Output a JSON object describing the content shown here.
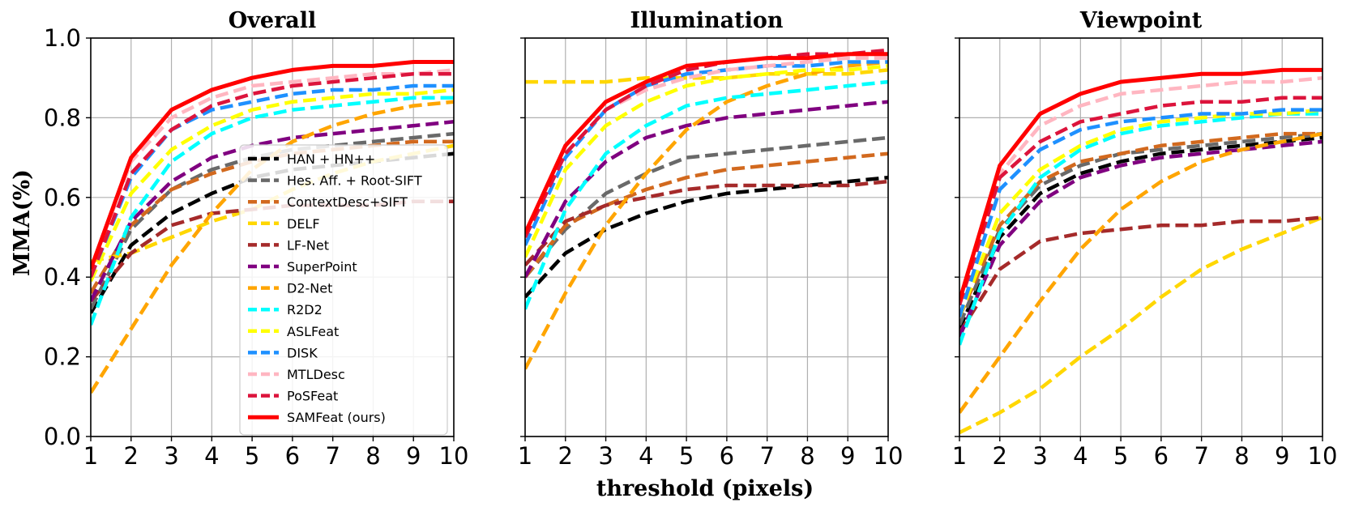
{
  "chart_data": {
    "type": "line",
    "ylabel": "MMA(%)",
    "xlabel": "threshold (pixels)",
    "x": [
      1,
      2,
      3,
      4,
      5,
      6,
      7,
      8,
      9,
      10
    ],
    "xlim": [
      1,
      10
    ],
    "ylim": [
      0.0,
      1.0
    ],
    "xticks": [
      "1",
      "2",
      "3",
      "4",
      "5",
      "6",
      "7",
      "8",
      "9",
      "10"
    ],
    "yticks": [
      "0.0",
      "0.2",
      "0.4",
      "0.6",
      "0.8",
      "1.0"
    ],
    "grid": true,
    "legend_panel": 0,
    "legend_location": "lower-right",
    "methods": [
      {
        "name": "HAN + HN++",
        "color": "#000000",
        "style": "dashed"
      },
      {
        "name": "Hes. Aff. + Root-SIFT",
        "color": "#696969",
        "style": "dashed"
      },
      {
        "name": "ContextDesc+SIFT",
        "color": "#d2691e",
        "style": "dashed"
      },
      {
        "name": "DELF",
        "color": "#ffd700",
        "style": "dashed"
      },
      {
        "name": "LF-Net",
        "color": "#a52a2a",
        "style": "dashed"
      },
      {
        "name": "SuperPoint",
        "color": "#800080",
        "style": "dashed"
      },
      {
        "name": "D2-Net",
        "color": "#ffa500",
        "style": "dashed"
      },
      {
        "name": "R2D2",
        "color": "#00ffff",
        "style": "dashed"
      },
      {
        "name": "ASLFeat",
        "color": "#ffff00",
        "style": "dashed"
      },
      {
        "name": "DISK",
        "color": "#1e90ff",
        "style": "dashed"
      },
      {
        "name": "MTLDesc",
        "color": "#ffb6c1",
        "style": "dashed"
      },
      {
        "name": "PoSFeat",
        "color": "#dc143c",
        "style": "dashed"
      },
      {
        "name": "SAMFeat (ours)",
        "color": "#ff0000",
        "style": "solid"
      }
    ],
    "panels": [
      {
        "title": "Overall",
        "series": [
          [
            0.31,
            0.48,
            0.56,
            0.61,
            0.65,
            0.67,
            0.68,
            0.69,
            0.7,
            0.71
          ],
          [
            0.32,
            0.52,
            0.62,
            0.67,
            0.7,
            0.72,
            0.73,
            0.74,
            0.75,
            0.76
          ],
          [
            0.36,
            0.53,
            0.62,
            0.66,
            0.69,
            0.71,
            0.72,
            0.73,
            0.74,
            0.74
          ],
          [
            0.44,
            0.46,
            0.5,
            0.54,
            0.57,
            0.62,
            0.66,
            0.69,
            0.71,
            0.73
          ],
          [
            0.34,
            0.46,
            0.53,
            0.56,
            0.57,
            0.58,
            0.58,
            0.58,
            0.59,
            0.59
          ],
          [
            0.34,
            0.54,
            0.64,
            0.7,
            0.73,
            0.75,
            0.76,
            0.77,
            0.78,
            0.79
          ],
          [
            0.11,
            0.27,
            0.43,
            0.56,
            0.67,
            0.74,
            0.78,
            0.81,
            0.83,
            0.84
          ],
          [
            0.28,
            0.55,
            0.69,
            0.76,
            0.8,
            0.82,
            0.83,
            0.84,
            0.85,
            0.85
          ],
          [
            0.39,
            0.61,
            0.72,
            0.78,
            0.82,
            0.84,
            0.85,
            0.86,
            0.86,
            0.87
          ],
          [
            0.4,
            0.65,
            0.77,
            0.82,
            0.84,
            0.86,
            0.87,
            0.87,
            0.88,
            0.88
          ],
          [
            0.42,
            0.69,
            0.8,
            0.85,
            0.88,
            0.89,
            0.9,
            0.91,
            0.91,
            0.92
          ],
          [
            0.4,
            0.66,
            0.77,
            0.83,
            0.86,
            0.88,
            0.89,
            0.9,
            0.91,
            0.91
          ],
          [
            0.42,
            0.7,
            0.82,
            0.87,
            0.9,
            0.92,
            0.93,
            0.93,
            0.94,
            0.94
          ]
        ]
      },
      {
        "title": "Illumination",
        "series": [
          [
            0.35,
            0.46,
            0.52,
            0.56,
            0.59,
            0.61,
            0.62,
            0.63,
            0.64,
            0.65
          ],
          [
            0.4,
            0.52,
            0.61,
            0.66,
            0.7,
            0.71,
            0.72,
            0.73,
            0.74,
            0.75
          ],
          [
            0.4,
            0.53,
            0.58,
            0.62,
            0.65,
            0.67,
            0.68,
            0.69,
            0.7,
            0.71
          ],
          [
            0.89,
            0.89,
            0.89,
            0.9,
            0.9,
            0.9,
            0.91,
            0.91,
            0.91,
            0.92
          ],
          [
            0.43,
            0.54,
            0.58,
            0.6,
            0.62,
            0.63,
            0.63,
            0.63,
            0.63,
            0.64
          ],
          [
            0.4,
            0.59,
            0.69,
            0.75,
            0.78,
            0.8,
            0.81,
            0.82,
            0.83,
            0.84
          ],
          [
            0.17,
            0.36,
            0.53,
            0.66,
            0.77,
            0.84,
            0.88,
            0.91,
            0.93,
            0.94
          ],
          [
            0.32,
            0.57,
            0.71,
            0.78,
            0.83,
            0.85,
            0.86,
            0.87,
            0.88,
            0.89
          ],
          [
            0.45,
            0.67,
            0.78,
            0.84,
            0.88,
            0.9,
            0.91,
            0.92,
            0.92,
            0.93
          ],
          [
            0.48,
            0.7,
            0.82,
            0.88,
            0.91,
            0.92,
            0.93,
            0.93,
            0.94,
            0.94
          ],
          [
            0.5,
            0.71,
            0.82,
            0.87,
            0.9,
            0.92,
            0.93,
            0.94,
            0.95,
            0.95
          ],
          [
            0.5,
            0.71,
            0.82,
            0.88,
            0.92,
            0.94,
            0.95,
            0.96,
            0.96,
            0.97
          ],
          [
            0.51,
            0.73,
            0.84,
            0.89,
            0.93,
            0.94,
            0.95,
            0.95,
            0.96,
            0.96
          ]
        ]
      },
      {
        "title": "Viewpoint",
        "series": [
          [
            0.27,
            0.5,
            0.61,
            0.66,
            0.69,
            0.71,
            0.72,
            0.73,
            0.74,
            0.75
          ],
          [
            0.28,
            0.52,
            0.63,
            0.68,
            0.71,
            0.72,
            0.73,
            0.74,
            0.75,
            0.76
          ],
          [
            0.3,
            0.53,
            0.64,
            0.69,
            0.71,
            0.73,
            0.74,
            0.75,
            0.76,
            0.76
          ],
          [
            0.01,
            0.06,
            0.12,
            0.2,
            0.27,
            0.35,
            0.42,
            0.47,
            0.51,
            0.55
          ],
          [
            0.26,
            0.42,
            0.49,
            0.51,
            0.52,
            0.53,
            0.53,
            0.54,
            0.54,
            0.55
          ],
          [
            0.25,
            0.48,
            0.59,
            0.65,
            0.68,
            0.7,
            0.71,
            0.72,
            0.73,
            0.74
          ],
          [
            0.06,
            0.2,
            0.34,
            0.47,
            0.57,
            0.64,
            0.69,
            0.72,
            0.74,
            0.76
          ],
          [
            0.23,
            0.51,
            0.65,
            0.72,
            0.76,
            0.78,
            0.79,
            0.8,
            0.81,
            0.81
          ],
          [
            0.3,
            0.56,
            0.67,
            0.73,
            0.77,
            0.79,
            0.8,
            0.81,
            0.81,
            0.82
          ],
          [
            0.3,
            0.62,
            0.72,
            0.77,
            0.79,
            0.8,
            0.81,
            0.81,
            0.82,
            0.82
          ],
          [
            0.33,
            0.66,
            0.78,
            0.83,
            0.86,
            0.87,
            0.88,
            0.89,
            0.89,
            0.9
          ],
          [
            0.33,
            0.65,
            0.74,
            0.79,
            0.81,
            0.83,
            0.84,
            0.84,
            0.85,
            0.85
          ],
          [
            0.34,
            0.68,
            0.81,
            0.86,
            0.89,
            0.9,
            0.91,
            0.91,
            0.92,
            0.92
          ]
        ]
      }
    ]
  }
}
